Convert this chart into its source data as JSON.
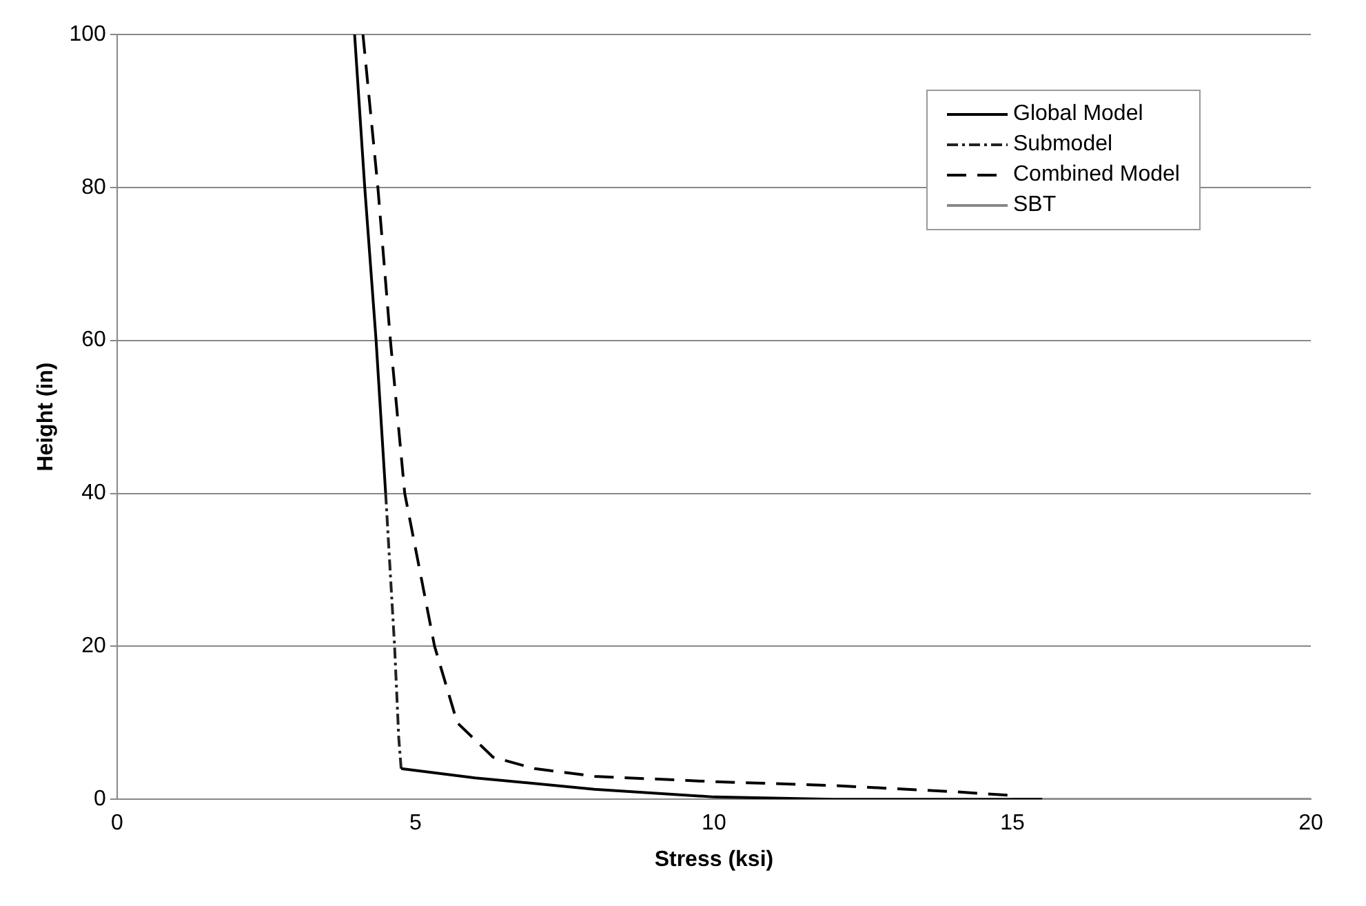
{
  "chart_data": {
    "type": "line",
    "xlabel": "Stress (ksi)",
    "ylabel": "Height (in)",
    "xlim": [
      0,
      20
    ],
    "xticks": [
      0,
      5,
      10,
      15,
      20
    ],
    "ylim": [
      0,
      100
    ],
    "yticks": [
      0,
      20,
      40,
      60,
      80,
      100
    ],
    "grid": "y",
    "legend": "top right",
    "marker": "none",
    "series": [
      {
        "name": "Global Model",
        "color": "#000000",
        "line_style": "solid",
        "x": [
          3.98,
          4.15,
          4.34,
          4.5,
          4.6,
          4.76,
          6,
          8,
          10,
          12,
          15.5
        ],
        "values": [
          100,
          80,
          60,
          40,
          null,
          4,
          2.8,
          1.3,
          0.3,
          0,
          0
        ]
      },
      {
        "name": "Submodel",
        "color": "#222222",
        "line_style": "dotted",
        "x": [
          4.5,
          4.65,
          4.72,
          4.76
        ],
        "values": [
          40,
          20,
          8,
          4
        ]
      },
      {
        "name": "Combined Model",
        "color": "#000000",
        "line_style": "dashed",
        "x": [
          4.12,
          4.37,
          4.58,
          4.82,
          5.32,
          5.7,
          6.3,
          7,
          8,
          10,
          12,
          14,
          15
        ],
        "values": [
          100,
          80,
          60,
          40,
          20,
          10,
          5.5,
          4,
          3,
          2.3,
          1.8,
          1,
          0.5
        ]
      },
      {
        "name": "SBT",
        "color": "#888888",
        "line_style": "solid",
        "x": [
          15,
          20
        ],
        "values": [
          0,
          0
        ]
      }
    ]
  }
}
